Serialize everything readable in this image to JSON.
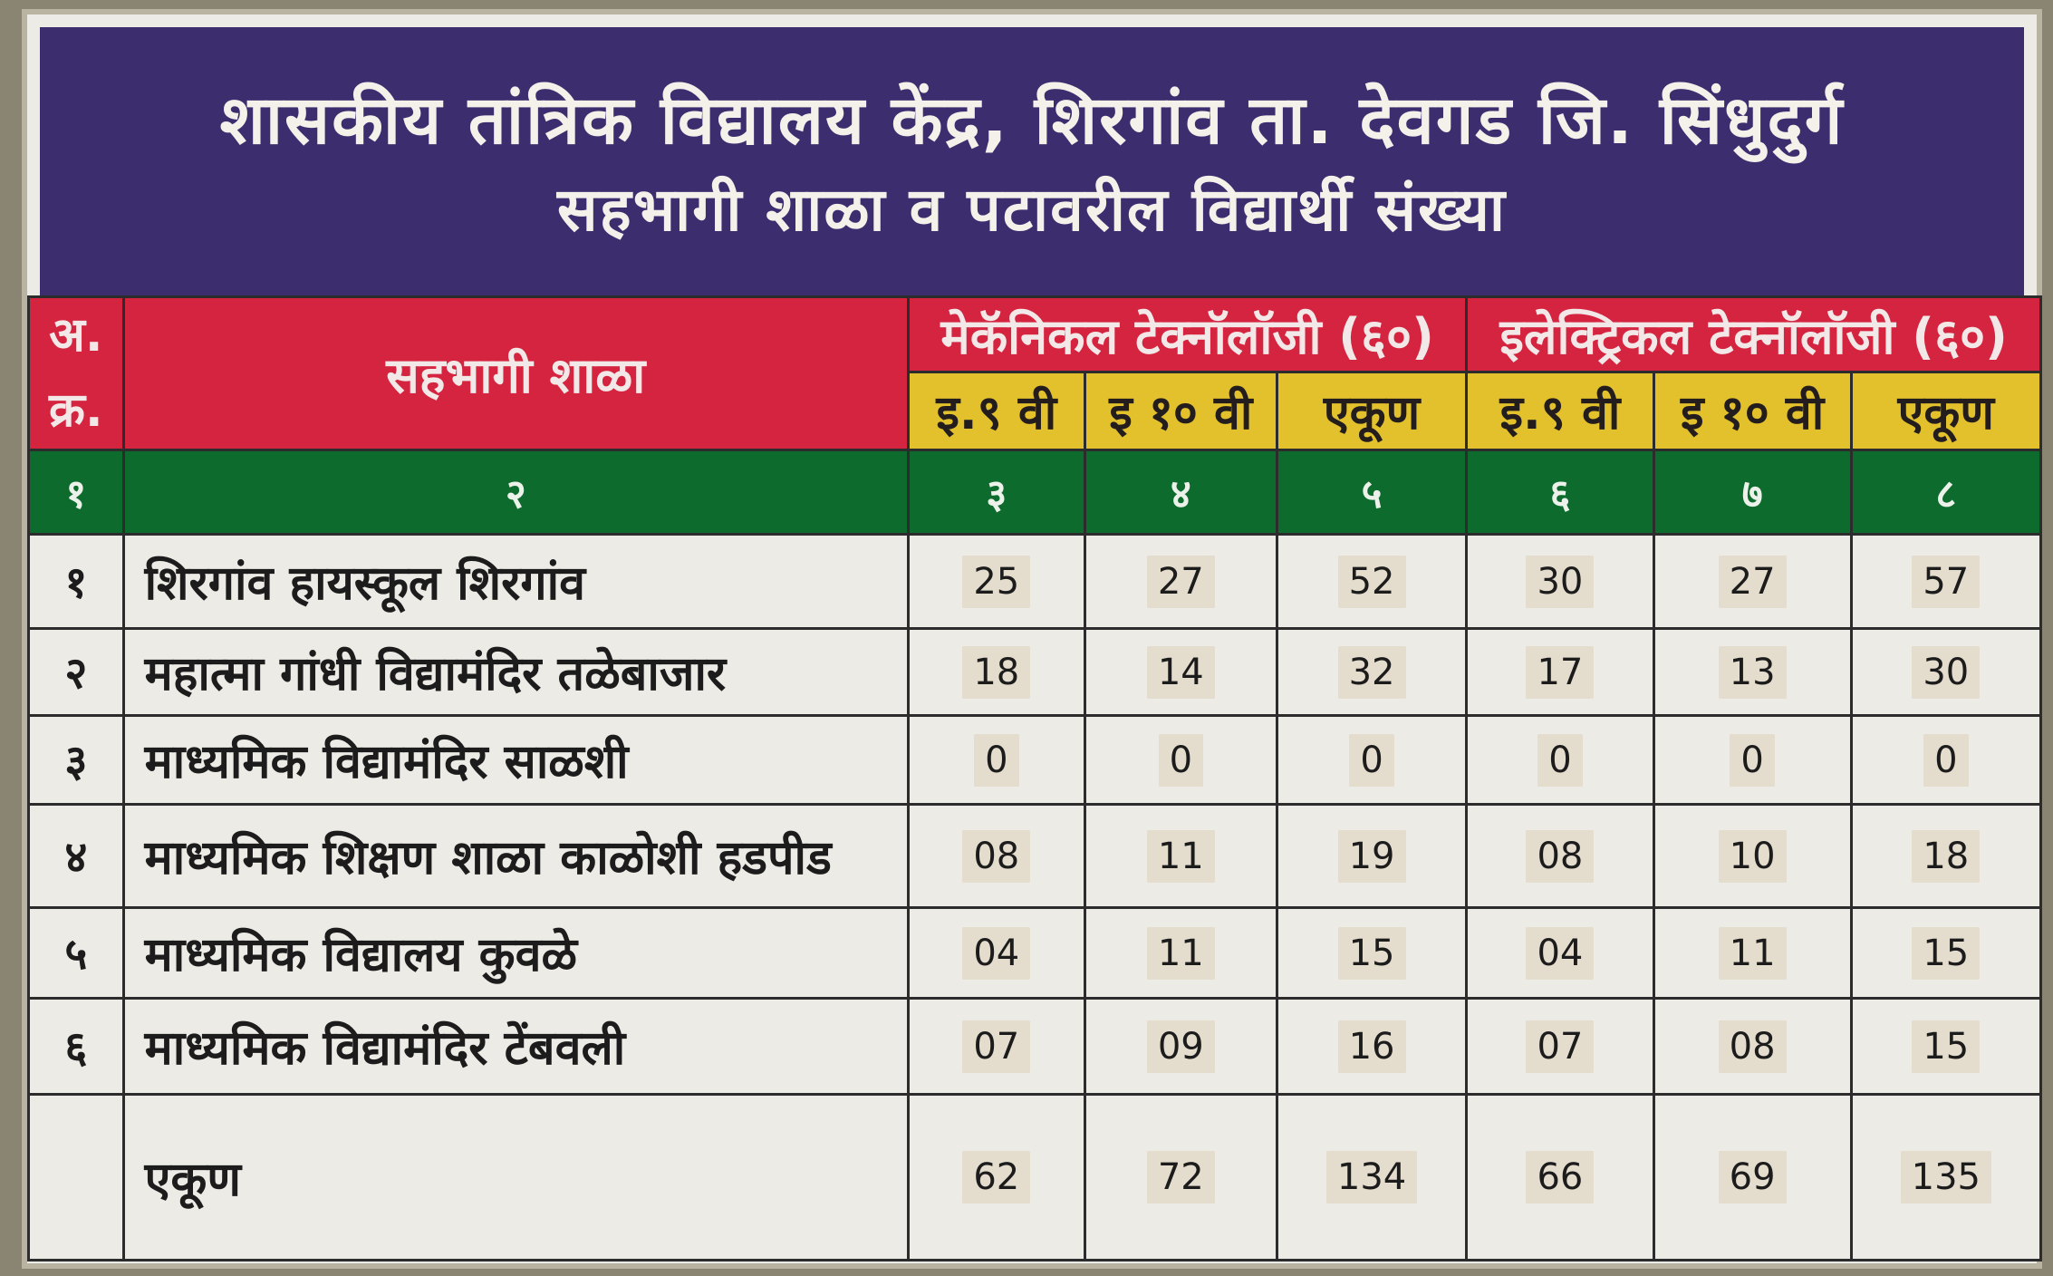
{
  "header": {
    "title_line1": "शासकीय तांत्रिक विद्यालय केंद्र, शिरगांव ता. देवगड जि. सिंधुदुर्ग",
    "title_line2": "सहभागी शाळा व पटावरील विद्यार्थी संख्या"
  },
  "table": {
    "col_sr_line1": "अ.",
    "col_sr_line2": "क्र.",
    "col_school": "सहभागी शाळा",
    "group_mech": "मेकॅनिकल टेक्नॉलॉजी (६०)",
    "group_elec": "इलेक्ट्रिकल टेक्नॉलॉजी (६०)",
    "sub_labels": [
      "इ.९ वी",
      "इ १० वी",
      "एकूण",
      "इ.९ वी",
      "इ १० वी",
      "एकूण"
    ],
    "col_numbers": [
      "१",
      "२",
      "३",
      "४",
      "५",
      "६",
      "७",
      "८"
    ],
    "rows": [
      {
        "sr": "१",
        "school": "शिरगांव हायस्कूल शिरगांव",
        "values": [
          "25",
          "27",
          "52",
          "30",
          "27",
          "57"
        ]
      },
      {
        "sr": "२",
        "school": "महात्मा गांधी विद्यामंदिर तळेबाजार",
        "values": [
          "18",
          "14",
          "32",
          "17",
          "13",
          "30"
        ]
      },
      {
        "sr": "३",
        "school": "माध्यमिक विद्यामंदिर साळशी",
        "values": [
          "0",
          "0",
          "0",
          "0",
          "0",
          "0"
        ]
      },
      {
        "sr": "४",
        "school": "माध्यमिक शिक्षण शाळा काळोशी हडपीड",
        "values": [
          "08",
          "11",
          "19",
          "08",
          "10",
          "18"
        ]
      },
      {
        "sr": "५",
        "school": "माध्यमिक विद्यालय कुवळे",
        "values": [
          "04",
          "11",
          "15",
          "04",
          "11",
          "15"
        ]
      },
      {
        "sr": "६",
        "school": "माध्यमिक विद्यामंदिर टेंबवली",
        "values": [
          "07",
          "09",
          "16",
          "07",
          "08",
          "15"
        ]
      }
    ],
    "total": {
      "label": "एकूण",
      "values": [
        "62",
        "72",
        "134",
        "66",
        "69",
        "135"
      ]
    }
  }
}
